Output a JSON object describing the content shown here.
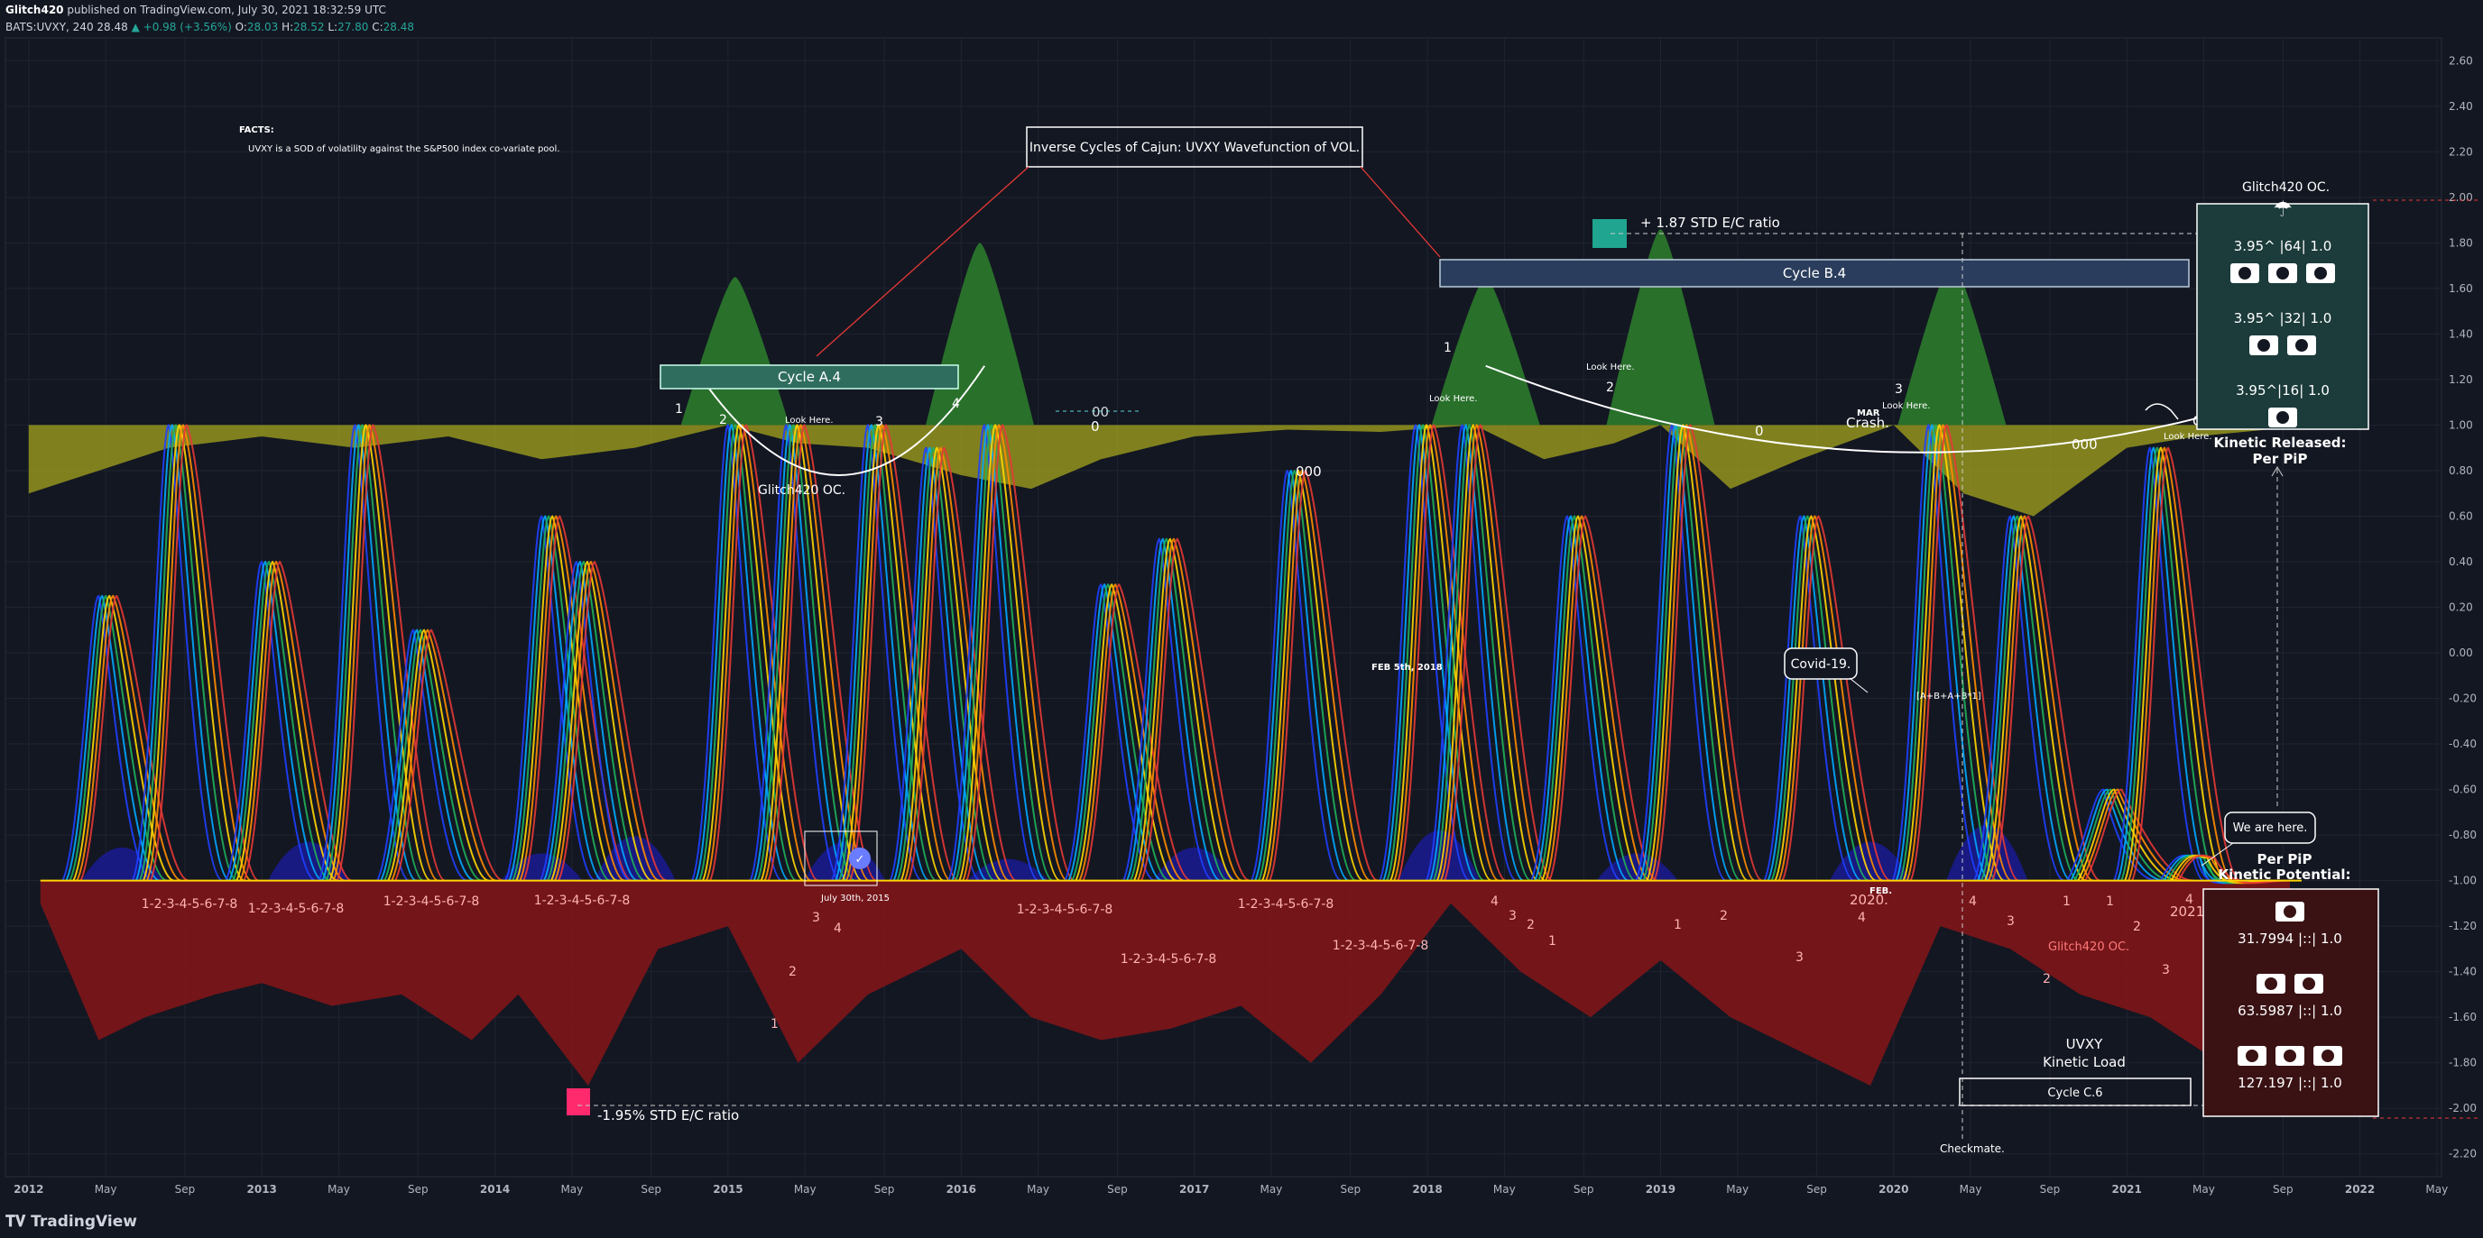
{
  "header": {
    "author": "Glitch420",
    "published": "published on TradingView.com, July 30, 2021 18:32:59 UTC",
    "symbol": "BATS:UVXY, 240",
    "price": "28.48",
    "change": "▲ +0.98 (+3.56%)",
    "o_label": "O:",
    "o": "28.03",
    "h_label": "H:",
    "h": "28.52",
    "l_label": "L:",
    "l": "27.80",
    "c_label": "C:",
    "c": "28.48"
  },
  "footer": {
    "brand": "TradingView",
    "logo_icon": "tradingview-logo-icon"
  },
  "colors": {
    "background": "#131722",
    "grid": "#1f2430",
    "yellow": "#a5a51e",
    "red": "#7f1518",
    "blue": "#1a1a8c",
    "green": "#2c7a2c",
    "teal": "#1c3b3b"
  },
  "chart_data": {
    "type": "area",
    "ylim": [
      -2.3,
      2.7
    ],
    "y_ticks": [
      "2.60",
      "2.40",
      "2.20",
      "2.00",
      "1.80",
      "1.60",
      "1.40",
      "1.20",
      "1.00",
      "0.80",
      "0.60",
      "0.40",
      "0.20",
      "0.00",
      "-0.20",
      "-0.40",
      "-0.60",
      "-0.80",
      "-1.00",
      "-1.20",
      "-1.40",
      "-1.60",
      "-1.80",
      "-2.00",
      "-2.20"
    ],
    "x_ticks": [
      "2012",
      "May",
      "Sep",
      "2013",
      "May",
      "Sep",
      "2014",
      "May",
      "Sep",
      "2015",
      "May",
      "Sep",
      "2016",
      "May",
      "Sep",
      "2017",
      "May",
      "Sep",
      "2018",
      "May",
      "Sep",
      "2019",
      "May",
      "Sep",
      "2020",
      "May",
      "Sep",
      "2021",
      "May",
      "Sep",
      "2022",
      "May"
    ],
    "x_tick_dates": [
      2012.0,
      2012.33,
      2012.67,
      2013.0,
      2013.33,
      2013.67,
      2014.0,
      2014.33,
      2014.67,
      2015.0,
      2015.33,
      2015.67,
      2016.0,
      2016.33,
      2016.67,
      2017.0,
      2017.33,
      2017.67,
      2018.0,
      2018.33,
      2018.67,
      2019.0,
      2019.33,
      2019.67,
      2020.0,
      2020.33,
      2020.67,
      2021.0,
      2021.33,
      2021.67,
      2022.0,
      2022.33
    ],
    "xlim": [
      2011.9,
      2022.35
    ],
    "oscillator_upper": {
      "name": "yellow",
      "baseline": 1.0,
      "x": [
        2012.0,
        2012.3,
        2012.6,
        2013.0,
        2013.4,
        2013.8,
        2014.2,
        2014.6,
        2015.0,
        2015.3,
        2015.6,
        2016.0,
        2016.3,
        2016.6,
        2017.0,
        2017.4,
        2017.8,
        2018.2,
        2018.5,
        2018.8,
        2019.0,
        2019.3,
        2019.6,
        2020.0,
        2020.3,
        2020.6,
        2021.0,
        2021.3,
        2021.6
      ],
      "y": [
        0.7,
        0.8,
        0.9,
        0.95,
        0.9,
        0.95,
        0.85,
        0.9,
        1.0,
        0.92,
        0.9,
        0.78,
        0.72,
        0.85,
        0.95,
        0.98,
        0.97,
        1.0,
        0.85,
        0.92,
        1.0,
        0.72,
        0.85,
        1.0,
        0.7,
        0.6,
        0.9,
        0.95,
        0.98
      ]
    },
    "oscillator_green": {
      "name": "green",
      "baseline": 1.0,
      "peaks": [
        [
          2015.03,
          1.65
        ],
        [
          2016.08,
          1.8
        ],
        [
          2018.25,
          1.65
        ],
        [
          2019.0,
          1.86
        ],
        [
          2020.25,
          1.72
        ]
      ]
    },
    "oscillator_lower": {
      "name": "red",
      "baseline": -1.0,
      "x": [
        2012.05,
        2012.3,
        2012.5,
        2012.8,
        2013.0,
        2013.3,
        2013.6,
        2013.9,
        2014.1,
        2014.4,
        2014.7,
        2015.0,
        2015.3,
        2015.6,
        2016.0,
        2016.3,
        2016.6,
        2016.9,
        2017.2,
        2017.5,
        2017.8,
        2018.1,
        2018.4,
        2018.7,
        2019.0,
        2019.3,
        2019.6,
        2019.9,
        2020.2,
        2020.5,
        2020.8,
        2021.1,
        2021.4,
        2021.7
      ],
      "y": [
        -1.1,
        -1.7,
        -1.6,
        -1.5,
        -1.45,
        -1.55,
        -1.5,
        -1.7,
        -1.5,
        -1.9,
        -1.3,
        -1.2,
        -1.8,
        -1.5,
        -1.3,
        -1.6,
        -1.7,
        -1.65,
        -1.55,
        -1.8,
        -1.5,
        -1.1,
        -1.4,
        -1.6,
        -1.35,
        -1.6,
        -1.75,
        -1.9,
        -1.2,
        -1.3,
        -1.5,
        -1.6,
        -1.8,
        -1.4
      ]
    },
    "price_spikes": {
      "x": [
        2012.3,
        2012.6,
        2013.0,
        2013.4,
        2013.65,
        2014.2,
        2014.35,
        2015.0,
        2015.25,
        2015.6,
        2015.85,
        2016.1,
        2016.6,
        2016.85,
        2017.4,
        2017.95,
        2018.15,
        2018.6,
        2019.05,
        2019.6,
        2020.15,
        2020.5,
        2020.9,
        2021.1,
        2021.3
      ],
      "y": [
        0.25,
        1.0,
        0.4,
        1.0,
        0.1,
        0.6,
        0.4,
        1.0,
        1.0,
        1.0,
        0.9,
        1.0,
        0.3,
        0.5,
        0.8,
        1.0,
        1.0,
        0.6,
        1.0,
        0.6,
        1.0,
        0.6,
        -0.6,
        0.9,
        -0.9
      ]
    },
    "cycle_arcs": [
      {
        "label": "Cycle A.4",
        "from": 2014.85,
        "to": 2016.1,
        "bottom": 0.78
      },
      {
        "label": "Cycle B.4",
        "from": 2018.25,
        "to": 2022.0,
        "bottom": 0.88
      }
    ],
    "annotations": {
      "facts_title": "FACTS:",
      "facts_text": "UVXY is a SOD of volatility against the S&P500 index co-variate pool.",
      "title_box": "Inverse Cycles of Cajun: UVXY Wavefunction of VOL.",
      "cycle_a": "Cycle A.4",
      "cycle_b": "Cycle B.4",
      "cycle_c": "Cycle C.6",
      "glitch_oc_1": "Glitch420 OC.",
      "glitch_oc_2": "Glitch420 OC.",
      "glitch_oc_3": "Glitch420 OC.",
      "look_here_1": "Look Here.",
      "look_here_2": "Look Here.",
      "look_here_3": "Look Here.",
      "look_here_4": "Look Here.",
      "look_here_5": "Look Here.",
      "std_up": "+ 1.87 STD E/C ratio",
      "std_down": "-1.95% STD E/C ratio",
      "covid": "Covid-19.",
      "feb5": "FEB 5th, 2018",
      "july30": "July 30th, 2015",
      "mar": "MAR",
      "crash1": "Crash.",
      "crash2": "Crash.",
      "feb": "FEB.",
      "we_are_here": "We are here.",
      "checkmate": "Checkmate.",
      "kinetic_released": "Kinetic Released:",
      "per_pip_1": "Per PiP",
      "per_pip_2": "Per PiP",
      "kinetic_potential": "Kinetic Potential:",
      "uvxy": "UVXY",
      "kinetic_load": "Kinetic Load",
      "year_2020": "2020.",
      "year_2021": "2021",
      "zero_1": "0",
      "zero_2": "0",
      "triple_0_1": "000",
      "triple_0_2": "000",
      "double_0": "00",
      "seq": "1-2-3-4-5-6-7-8",
      "mini_label": "[A+B+A+B*1]",
      "cash_icon": "cash-icon",
      "umbrella_icon": "umbrella-icon",
      "check_icon": "check-circle-icon",
      "num1": "1",
      "num2": "2",
      "num3": "3",
      "num4": "4"
    },
    "kinetic_released_table": [
      {
        "text": "3.95^ |64| 1.0",
        "cash_count": 3
      },
      {
        "text": "3.95^ |32| 1.0",
        "cash_count": 2
      },
      {
        "text": "3.95^|16| 1.0",
        "cash_count": 1
      }
    ],
    "kinetic_potential_table": [
      {
        "text": "31.7994 |::| 1.0",
        "cash_count": 1
      },
      {
        "text": "63.5987 |::| 1.0",
        "cash_count": 2
      },
      {
        "text": "127.197 |::| 1.0",
        "cash_count": 3
      }
    ]
  }
}
